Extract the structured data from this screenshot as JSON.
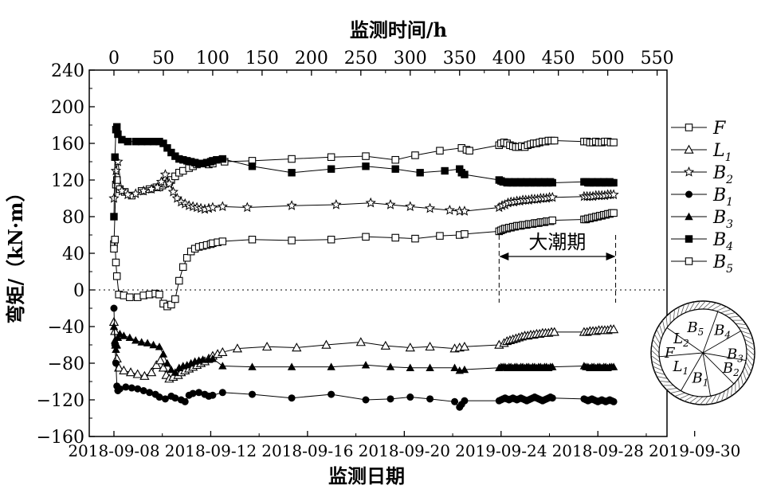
{
  "chart_data": {
    "type": "line",
    "top_axis": {
      "label": "监测时间/h",
      "ticks": [
        0,
        50,
        100,
        150,
        200,
        250,
        300,
        350,
        400,
        450,
        500,
        550
      ],
      "range": [
        -25,
        560
      ]
    },
    "bottom_axis": {
      "label": "监测日期",
      "tick_labels": [
        "2018-09-08",
        "2018-09-12",
        "2018-09-16",
        "2018-09-20",
        "2019-09-24",
        "2018-09-28",
        "2019-09-30"
      ]
    },
    "y_axis": {
      "label": "弯矩/（kN·m）",
      "ylim": [
        -160,
        240
      ],
      "ticks": [
        240,
        200,
        160,
        120,
        80,
        40,
        0,
        -40,
        -80,
        -120,
        -160
      ]
    },
    "zero_line": true,
    "annotation": {
      "text": "大潮期",
      "x_range": [
        390,
        508
      ]
    },
    "legend_placement": "right",
    "series": [
      {
        "name": "F",
        "marker": "open-square",
        "x": [
          0,
          2,
          3,
          6,
          11,
          18,
          28,
          36,
          43,
          46,
          49,
          52,
          56,
          58,
          62,
          66,
          70,
          76,
          80,
          84,
          88,
          92,
          96,
          100,
          112,
          140,
          180,
          220,
          255,
          285,
          305,
          330,
          352,
          357,
          360,
          390,
          392,
          395,
          398,
          401,
          404,
          407,
          410,
          413,
          416,
          419,
          422,
          425,
          428,
          431,
          434,
          437,
          440,
          443,
          446,
          476,
          479,
          482,
          485,
          488,
          491,
          494,
          497,
          500,
          503,
          506
        ],
        "values": [
          50,
          115,
          120,
          110,
          107,
          103,
          108,
          110,
          112,
          112,
          114,
          116,
          118,
          120,
          124,
          128,
          130,
          133,
          135,
          137,
          138,
          138,
          137,
          138,
          140,
          141,
          143,
          145,
          146,
          142,
          147,
          152,
          155,
          153,
          152,
          158,
          160,
          161,
          160,
          158,
          157,
          156,
          156,
          157,
          156,
          158,
          159,
          160,
          160,
          161,
          162,
          162,
          163,
          163,
          163,
          162,
          162,
          161,
          161,
          162,
          161,
          161,
          162,
          162,
          161,
          161
        ]
      },
      {
        "name": "L1",
        "subscript": "1",
        "marker": "open-triangle",
        "x": [
          0,
          1,
          2,
          3,
          5,
          10,
          17,
          24,
          31,
          38,
          43,
          47,
          50,
          53,
          56,
          60,
          65,
          68,
          72,
          76,
          80,
          84,
          88,
          92,
          96,
          100,
          105,
          110,
          125,
          155,
          185,
          215,
          250,
          275,
          300,
          320,
          345,
          350,
          355,
          390,
          395,
          398,
          401,
          404,
          407,
          410,
          413,
          416,
          419,
          422,
          425,
          428,
          431,
          434,
          437,
          440,
          443,
          446,
          476,
          479,
          482,
          485,
          488,
          491,
          494,
          497,
          500,
          503,
          506
        ],
        "values": [
          -35,
          -45,
          -60,
          -75,
          -85,
          -88,
          -90,
          -92,
          -94,
          -90,
          -82,
          -77,
          -85,
          -93,
          -97,
          -95,
          -93,
          -90,
          -88,
          -86,
          -84,
          -82,
          -80,
          -78,
          -75,
          -72,
          -70,
          -68,
          -64,
          -62,
          -63,
          -60,
          -57,
          -61,
          -63,
          -62,
          -64,
          -63,
          -62,
          -60,
          -58,
          -56,
          -55,
          -54,
          -53,
          -52,
          -51,
          -50,
          -50,
          -49,
          -49,
          -48,
          -48,
          -47,
          -47,
          -47,
          -46,
          -46,
          -46,
          -46,
          -45,
          -45,
          -45,
          -44,
          -44,
          -44,
          -44,
          -43,
          -43
        ]
      },
      {
        "name": "B2",
        "subscript": "2",
        "marker": "open-star",
        "x": [
          0,
          2,
          4,
          8,
          14,
          22,
          30,
          38,
          44,
          48,
          52,
          56,
          60,
          64,
          68,
          72,
          76,
          80,
          84,
          88,
          92,
          96,
          100,
          110,
          135,
          180,
          225,
          260,
          280,
          300,
          320,
          340,
          350,
          355,
          390,
          393,
          396,
          399,
          402,
          405,
          408,
          411,
          414,
          417,
          420,
          423,
          426,
          429,
          432,
          435,
          438,
          441,
          444,
          476,
          479,
          482,
          485,
          488,
          491,
          494,
          497,
          500,
          503,
          506
        ],
        "values": [
          100,
          130,
          140,
          108,
          104,
          105,
          108,
          110,
          112,
          118,
          126,
          116,
          107,
          100,
          96,
          94,
          92,
          91,
          90,
          89,
          88,
          89,
          90,
          91,
          90,
          92,
          93,
          95,
          93,
          91,
          89,
          87,
          86,
          86,
          90,
          92,
          93,
          95,
          96,
          96,
          97,
          97,
          98,
          98,
          98,
          99,
          99,
          99,
          100,
          100,
          100,
          101,
          101,
          102,
          102,
          102,
          102,
          103,
          103,
          103,
          103,
          104,
          104,
          104
        ]
      },
      {
        "name": "B1",
        "subscript": "1",
        "marker": "filled-circle",
        "x": [
          0,
          1,
          2,
          3,
          4,
          6,
          12,
          18,
          24,
          30,
          36,
          42,
          46,
          52,
          58,
          62,
          68,
          72,
          76,
          80,
          86,
          92,
          96,
          100,
          110,
          140,
          180,
          220,
          255,
          280,
          300,
          320,
          345,
          350,
          352,
          355,
          390,
          392,
          394,
          396,
          398,
          400,
          402,
          404,
          406,
          408,
          410,
          412,
          414,
          416,
          418,
          420,
          422,
          424,
          426,
          428,
          430,
          432,
          434,
          436,
          438,
          440,
          442,
          444,
          476,
          478,
          480,
          482,
          484,
          486,
          488,
          490,
          492,
          494,
          496,
          498,
          500,
          502,
          504,
          506
        ],
        "values": [
          -20,
          -60,
          -80,
          -105,
          -110,
          -108,
          -106,
          -107,
          -108,
          -110,
          -112,
          -114,
          -117,
          -119,
          -116,
          -118,
          -120,
          -122,
          -115,
          -113,
          -112,
          -114,
          -116,
          -115,
          -112,
          -114,
          -118,
          -114,
          -120,
          -119,
          -117,
          -119,
          -122,
          -128,
          -125,
          -121,
          -121,
          -120,
          -119,
          -118,
          -119,
          -120,
          -119,
          -118,
          -119,
          -120,
          -119,
          -118,
          -119,
          -120,
          -121,
          -120,
          -119,
          -118,
          -117,
          -118,
          -119,
          -120,
          -121,
          -120,
          -119,
          -118,
          -117,
          -118,
          -119,
          -120,
          -121,
          -120,
          -119,
          -120,
          -121,
          -122,
          -121,
          -120,
          -121,
          -122,
          -121,
          -120,
          -121,
          -122
        ]
      },
      {
        "name": "B3",
        "subscript": "3",
        "marker": "filled-triangle",
        "x": [
          0,
          1,
          2,
          3,
          4,
          6,
          10,
          16,
          22,
          28,
          34,
          40,
          46,
          50,
          54,
          58,
          62,
          66,
          70,
          74,
          78,
          82,
          86,
          90,
          96,
          100,
          110,
          140,
          180,
          220,
          255,
          280,
          300,
          320,
          345,
          350,
          355,
          390,
          392,
          394,
          396,
          398,
          400,
          402,
          404,
          406,
          408,
          410,
          412,
          414,
          416,
          418,
          420,
          422,
          424,
          426,
          428,
          430,
          432,
          434,
          436,
          438,
          440,
          442,
          444,
          476,
          478,
          480,
          482,
          484,
          486,
          488,
          490,
          492,
          494,
          496,
          498,
          500,
          502,
          504,
          506
        ],
        "values": [
          -40,
          -55,
          -65,
          -60,
          -52,
          -48,
          -50,
          -52,
          -55,
          -57,
          -58,
          -60,
          -62,
          -70,
          -80,
          -87,
          -90,
          -85,
          -83,
          -82,
          -80,
          -78,
          -77,
          -76,
          -76,
          -75,
          -83,
          -84,
          -84,
          -84,
          -82,
          -84,
          -85,
          -85,
          -85,
          -88,
          -87,
          -85,
          -84,
          -84,
          -84,
          -85,
          -84,
          -84,
          -85,
          -84,
          -84,
          -85,
          -84,
          -84,
          -85,
          -84,
          -84,
          -85,
          -84,
          -84,
          -85,
          -84,
          -84,
          -85,
          -84,
          -84,
          -85,
          -84,
          -84,
          -83,
          -84,
          -84,
          -85,
          -84,
          -84,
          -85,
          -84,
          -84,
          -85,
          -84,
          -84,
          -85,
          -84,
          -84,
          -84
        ]
      },
      {
        "name": "B4",
        "subscript": "4",
        "marker": "filled-square",
        "x": [
          0,
          1,
          2,
          3,
          4,
          8,
          14,
          22,
          28,
          34,
          40,
          46,
          50,
          54,
          58,
          62,
          66,
          70,
          74,
          78,
          82,
          86,
          90,
          94,
          98,
          100,
          104,
          110,
          140,
          180,
          220,
          255,
          285,
          310,
          335,
          350,
          352,
          355,
          390,
          392,
          394,
          396,
          398,
          400,
          402,
          404,
          406,
          408,
          410,
          412,
          414,
          416,
          418,
          420,
          422,
          424,
          426,
          428,
          430,
          432,
          434,
          436,
          438,
          440,
          442,
          444,
          476,
          478,
          480,
          482,
          484,
          486,
          488,
          490,
          492,
          494,
          496,
          498,
          500,
          502,
          504,
          506
        ],
        "values": [
          80,
          145,
          175,
          178,
          170,
          164,
          162,
          162,
          162,
          162,
          162,
          162,
          160,
          155,
          150,
          146,
          143,
          142,
          141,
          140,
          139,
          138,
          138,
          139,
          140,
          141,
          142,
          143,
          135,
          128,
          132,
          135,
          132,
          128,
          130,
          132,
          128,
          126,
          120,
          119,
          118,
          118,
          117,
          118,
          117,
          117,
          118,
          117,
          117,
          118,
          117,
          117,
          118,
          117,
          117,
          118,
          117,
          117,
          118,
          117,
          117,
          118,
          117,
          117,
          118,
          117,
          118,
          118,
          117,
          117,
          118,
          117,
          117,
          118,
          117,
          117,
          118,
          117,
          117,
          118,
          117,
          117
        ]
      },
      {
        "name": "B5",
        "subscript": "5",
        "marker": "open-square",
        "x": [
          0,
          1,
          2,
          3,
          5,
          10,
          16,
          24,
          30,
          36,
          42,
          46,
          50,
          54,
          58,
          62,
          66,
          70,
          74,
          78,
          82,
          86,
          90,
          94,
          98,
          100,
          105,
          110,
          140,
          180,
          220,
          255,
          285,
          305,
          330,
          350,
          355,
          390,
          392,
          394,
          396,
          398,
          400,
          402,
          404,
          406,
          408,
          410,
          412,
          414,
          416,
          418,
          420,
          422,
          424,
          426,
          428,
          430,
          432,
          434,
          436,
          438,
          440,
          442,
          444,
          476,
          478,
          480,
          482,
          484,
          486,
          488,
          490,
          492,
          494,
          496,
          498,
          500,
          502,
          504,
          506
        ],
        "values": [
          45,
          55,
          30,
          15,
          -5,
          -6,
          -8,
          -8,
          -6,
          -5,
          -4,
          -5,
          -15,
          -18,
          -16,
          -10,
          10,
          25,
          35,
          42,
          45,
          47,
          48,
          49,
          50,
          51,
          52,
          53,
          55,
          54,
          55,
          58,
          57,
          56,
          59,
          60,
          61,
          64,
          65,
          66,
          67,
          67,
          68,
          68,
          69,
          69,
          70,
          70,
          70,
          71,
          71,
          71,
          72,
          72,
          72,
          73,
          73,
          73,
          74,
          74,
          74,
          75,
          75,
          75,
          76,
          77,
          77,
          78,
          78,
          79,
          79,
          80,
          80,
          81,
          81,
          82,
          82,
          83,
          83,
          84,
          84
        ]
      }
    ]
  },
  "legend": [
    {
      "name": "F",
      "sub": ""
    },
    {
      "name": "L",
      "sub": "1"
    },
    {
      "name": "B",
      "sub": "2"
    },
    {
      "name": "B",
      "sub": "1"
    },
    {
      "name": "B",
      "sub": "3"
    },
    {
      "name": "B",
      "sub": "4"
    },
    {
      "name": "B",
      "sub": "5"
    }
  ],
  "inset": {
    "segments": [
      {
        "name": "B",
        "sub": "5"
      },
      {
        "name": "B",
        "sub": "4"
      },
      {
        "name": "L",
        "sub": "2"
      },
      {
        "name": "B",
        "sub": "3"
      },
      {
        "name": "F",
        "sub": ""
      },
      {
        "name": "L",
        "sub": "1"
      },
      {
        "name": "B",
        "sub": "2"
      },
      {
        "name": "B",
        "sub": "1"
      }
    ]
  }
}
